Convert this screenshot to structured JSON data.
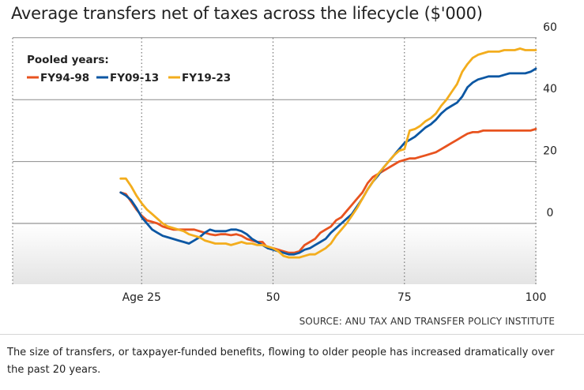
{
  "chart_data": {
    "type": "line",
    "title": "Average transfers net of taxes across the lifecycle ($'000)",
    "legend_title": "Pooled years:",
    "legend_position": "top-left",
    "xlabel": "",
    "ylabel": "",
    "xlim": [
      0,
      100
    ],
    "ylim": [
      -20,
      60
    ],
    "x_ticks": [
      25,
      50,
      75,
      100
    ],
    "x_tick_labels": [
      "Age 25",
      "50",
      "75",
      "100"
    ],
    "y_ticks": [
      0,
      20,
      40,
      60
    ],
    "y_tick_labels": [
      "0",
      "20",
      "40",
      "60"
    ],
    "y_axis_side": "right",
    "grid": "horizontal",
    "series": [
      {
        "name": "FY94-98",
        "color": "#e8531f",
        "points": [
          [
            21,
            10
          ],
          [
            22,
            9.5
          ],
          [
            23,
            7
          ],
          [
            24,
            4.5
          ],
          [
            25,
            2.5
          ],
          [
            26,
            1
          ],
          [
            27,
            0.5
          ],
          [
            28,
            0
          ],
          [
            29,
            -1
          ],
          [
            30,
            -1.5
          ],
          [
            31,
            -2
          ],
          [
            32,
            -2
          ],
          [
            33,
            -2
          ],
          [
            34,
            -2
          ],
          [
            35,
            -2
          ],
          [
            36,
            -2.5
          ],
          [
            37,
            -3
          ],
          [
            38,
            -3.5
          ],
          [
            39,
            -3.8
          ],
          [
            40,
            -3.5
          ],
          [
            41,
            -3.5
          ],
          [
            42,
            -3.8
          ],
          [
            43,
            -3.5
          ],
          [
            44,
            -4
          ],
          [
            45,
            -5
          ],
          [
            46,
            -5.5
          ],
          [
            47,
            -6
          ],
          [
            48,
            -6
          ],
          [
            49,
            -8
          ],
          [
            50,
            -8
          ],
          [
            51,
            -8.5
          ],
          [
            52,
            -9
          ],
          [
            53,
            -9.5
          ],
          [
            54,
            -9.5
          ],
          [
            55,
            -9
          ],
          [
            56,
            -7
          ],
          [
            57,
            -6
          ],
          [
            58,
            -5
          ],
          [
            59,
            -3
          ],
          [
            60,
            -2
          ],
          [
            61,
            -1
          ],
          [
            62,
            1
          ],
          [
            63,
            2
          ],
          [
            64,
            4
          ],
          [
            65,
            6
          ],
          [
            66,
            8
          ],
          [
            67,
            10
          ],
          [
            68,
            13
          ],
          [
            69,
            15
          ],
          [
            70,
            16
          ],
          [
            71,
            17
          ],
          [
            72,
            18
          ],
          [
            73,
            19
          ],
          [
            74,
            20
          ],
          [
            75,
            20.5
          ],
          [
            76,
            21
          ],
          [
            77,
            21
          ],
          [
            78,
            21.5
          ],
          [
            79,
            22
          ],
          [
            80,
            22.5
          ],
          [
            81,
            23
          ],
          [
            82,
            24
          ],
          [
            83,
            25
          ],
          [
            84,
            26
          ],
          [
            85,
            27
          ],
          [
            86,
            28
          ],
          [
            87,
            29
          ],
          [
            88,
            29.5
          ],
          [
            89,
            29.5
          ],
          [
            90,
            30
          ],
          [
            91,
            30
          ],
          [
            92,
            30
          ],
          [
            93,
            30
          ],
          [
            94,
            30
          ],
          [
            95,
            30
          ],
          [
            96,
            30
          ],
          [
            97,
            30
          ],
          [
            98,
            30
          ],
          [
            99,
            30
          ],
          [
            100,
            30.5
          ]
        ]
      },
      {
        "name": "FY09-13",
        "color": "#0c57a3",
        "points": [
          [
            21,
            10
          ],
          [
            22,
            9
          ],
          [
            23,
            7.5
          ],
          [
            24,
            5
          ],
          [
            25,
            2
          ],
          [
            26,
            0
          ],
          [
            27,
            -2
          ],
          [
            28,
            -3
          ],
          [
            29,
            -4
          ],
          [
            30,
            -4.5
          ],
          [
            31,
            -5
          ],
          [
            32,
            -5.5
          ],
          [
            33,
            -6
          ],
          [
            34,
            -6.5
          ],
          [
            35,
            -5.5
          ],
          [
            36,
            -4.5
          ],
          [
            37,
            -3
          ],
          [
            38,
            -2
          ],
          [
            39,
            -2.5
          ],
          [
            40,
            -2.5
          ],
          [
            41,
            -2.5
          ],
          [
            42,
            -2
          ],
          [
            43,
            -2
          ],
          [
            44,
            -2.5
          ],
          [
            45,
            -3.5
          ],
          [
            46,
            -5
          ],
          [
            47,
            -6
          ],
          [
            48,
            -7
          ],
          [
            49,
            -8
          ],
          [
            50,
            -8.5
          ],
          [
            51,
            -9
          ],
          [
            52,
            -9.5
          ],
          [
            53,
            -10
          ],
          [
            54,
            -10
          ],
          [
            55,
            -9.5
          ],
          [
            56,
            -8.5
          ],
          [
            57,
            -8
          ],
          [
            58,
            -7
          ],
          [
            59,
            -6
          ],
          [
            60,
            -5
          ],
          [
            61,
            -3
          ],
          [
            62,
            -1.5
          ],
          [
            63,
            0
          ],
          [
            64,
            1.5
          ],
          [
            65,
            3
          ],
          [
            66,
            5.5
          ],
          [
            67,
            8
          ],
          [
            68,
            11
          ],
          [
            69,
            13.5
          ],
          [
            70,
            15.5
          ],
          [
            71,
            18
          ],
          [
            72,
            20
          ],
          [
            73,
            22
          ],
          [
            74,
            24
          ],
          [
            75,
            26
          ],
          [
            76,
            27
          ],
          [
            77,
            28
          ],
          [
            78,
            29.5
          ],
          [
            79,
            31
          ],
          [
            80,
            32
          ],
          [
            81,
            33.5
          ],
          [
            82,
            35.5
          ],
          [
            83,
            37
          ],
          [
            84,
            38
          ],
          [
            85,
            39
          ],
          [
            86,
            41
          ],
          [
            87,
            44
          ],
          [
            88,
            45.5
          ],
          [
            89,
            46.5
          ],
          [
            90,
            47
          ],
          [
            91,
            47.5
          ],
          [
            92,
            47.5
          ],
          [
            93,
            47.5
          ],
          [
            94,
            48
          ],
          [
            95,
            48.5
          ],
          [
            96,
            48.5
          ],
          [
            97,
            48.5
          ],
          [
            98,
            48.5
          ],
          [
            99,
            49
          ],
          [
            100,
            50
          ]
        ]
      },
      {
        "name": "FY19-23",
        "color": "#f3ad1d",
        "points": [
          [
            21,
            14.5
          ],
          [
            22,
            14.5
          ],
          [
            23,
            12
          ],
          [
            24,
            9
          ],
          [
            25,
            6.5
          ],
          [
            26,
            4.5
          ],
          [
            27,
            3
          ],
          [
            28,
            1.5
          ],
          [
            29,
            0
          ],
          [
            30,
            -1
          ],
          [
            31,
            -1.5
          ],
          [
            32,
            -2
          ],
          [
            33,
            -2.5
          ],
          [
            34,
            -3.5
          ],
          [
            35,
            -4
          ],
          [
            36,
            -4.5
          ],
          [
            37,
            -5.5
          ],
          [
            38,
            -6
          ],
          [
            39,
            -6.5
          ],
          [
            40,
            -6.5
          ],
          [
            41,
            -6.5
          ],
          [
            42,
            -7
          ],
          [
            43,
            -6.5
          ],
          [
            44,
            -6
          ],
          [
            45,
            -6.5
          ],
          [
            46,
            -6.5
          ],
          [
            47,
            -7
          ],
          [
            48,
            -7
          ],
          [
            49,
            -7.5
          ],
          [
            50,
            -8
          ],
          [
            51,
            -9
          ],
          [
            52,
            -10.5
          ],
          [
            53,
            -11
          ],
          [
            54,
            -11
          ],
          [
            55,
            -11
          ],
          [
            56,
            -10.5
          ],
          [
            57,
            -10
          ],
          [
            58,
            -10
          ],
          [
            59,
            -9
          ],
          [
            60,
            -8
          ],
          [
            61,
            -6.5
          ],
          [
            62,
            -4
          ],
          [
            63,
            -2
          ],
          [
            64,
            0
          ],
          [
            65,
            2.5
          ],
          [
            66,
            5
          ],
          [
            67,
            8
          ],
          [
            68,
            11
          ],
          [
            69,
            13.5
          ],
          [
            70,
            16
          ],
          [
            71,
            18
          ],
          [
            72,
            20
          ],
          [
            73,
            22
          ],
          [
            74,
            23.5
          ],
          [
            75,
            24
          ],
          [
            76,
            30
          ],
          [
            77,
            30.5
          ],
          [
            78,
            31.5
          ],
          [
            79,
            33
          ],
          [
            80,
            34
          ],
          [
            81,
            35.5
          ],
          [
            82,
            38
          ],
          [
            83,
            40
          ],
          [
            84,
            42.5
          ],
          [
            85,
            45
          ],
          [
            86,
            49
          ],
          [
            87,
            51.5
          ],
          [
            88,
            53.5
          ],
          [
            89,
            54.5
          ],
          [
            90,
            55
          ],
          [
            91,
            55.5
          ],
          [
            92,
            55.5
          ],
          [
            93,
            55.5
          ],
          [
            94,
            56
          ],
          [
            95,
            56
          ],
          [
            96,
            56
          ],
          [
            97,
            56.5
          ],
          [
            98,
            56
          ],
          [
            99,
            56
          ],
          [
            100,
            56
          ]
        ]
      }
    ]
  },
  "source": "SOURCE: ANU TAX AND TRANSFER POLICY INSTITUTE",
  "caption": "The size of transfers, or taxpayer-funded benefits, flowing to older people has increased dramatically over the past 20 years."
}
